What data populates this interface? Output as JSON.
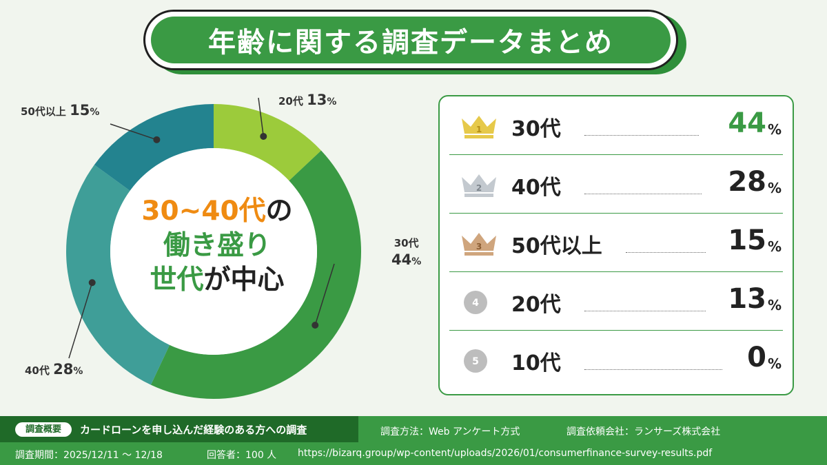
{
  "title": "年齢に関する調査データまとめ",
  "colors": {
    "green": "#3a9a44",
    "dark_green": "#1f6a28",
    "orange": "#ef8b12",
    "lime": "#9ccb3b",
    "teal": "#3f9e98",
    "dark_teal": "#23838f"
  },
  "center": {
    "line1_highlight": "30~40代",
    "line1_rest": "の",
    "line2": "働き盛り",
    "line3_highlight": "世代",
    "line3_rest": "が中心"
  },
  "chart_data": {
    "type": "pie",
    "style": "donut",
    "categories": [
      "20代",
      "30代",
      "40代",
      "50代以上"
    ],
    "values": [
      13,
      44,
      28,
      15
    ],
    "unit": "%",
    "colors": [
      "#9ccb3b",
      "#3a9a44",
      "#3f9e98",
      "#23838f"
    ]
  },
  "labels": {
    "s20": {
      "name": "20代",
      "value": "13",
      "unit": "%"
    },
    "s30": {
      "name": "30代",
      "value": "44",
      "unit": "%"
    },
    "s40": {
      "name": "40代",
      "value": "28",
      "unit": "%"
    },
    "s50": {
      "name": "50代以上",
      "value": "15",
      "unit": "%"
    }
  },
  "ranking": [
    {
      "rank": "1",
      "icon": "gold-crown-icon",
      "label": "30代",
      "value": "44",
      "unit": "%"
    },
    {
      "rank": "2",
      "icon": "silver-crown-icon",
      "label": "40代",
      "value": "28",
      "unit": "%"
    },
    {
      "rank": "3",
      "icon": "bronze-crown-icon",
      "label": "50代以上",
      "value": "15",
      "unit": "%"
    },
    {
      "rank": "4",
      "icon": "rank-circle-icon",
      "label": "20代",
      "value": "13",
      "unit": "%"
    },
    {
      "rank": "5",
      "icon": "rank-circle-icon",
      "label": "10代",
      "value": "0",
      "unit": "%"
    }
  ],
  "footer": {
    "badge": "調査概要",
    "summary": "カードローンを申し込んだ経験のある方への調査",
    "method": "調査方法：Web アンケート方式",
    "client": "調査依頼会社：ランサーズ株式会社",
    "period": "調査期間：2025/12/11 ～ 12/18",
    "respondents": "回答者：100 人",
    "url": "https://bizarq.group/wp-content/uploads/2026/01/consumerfinance-survey-results.pdf"
  }
}
